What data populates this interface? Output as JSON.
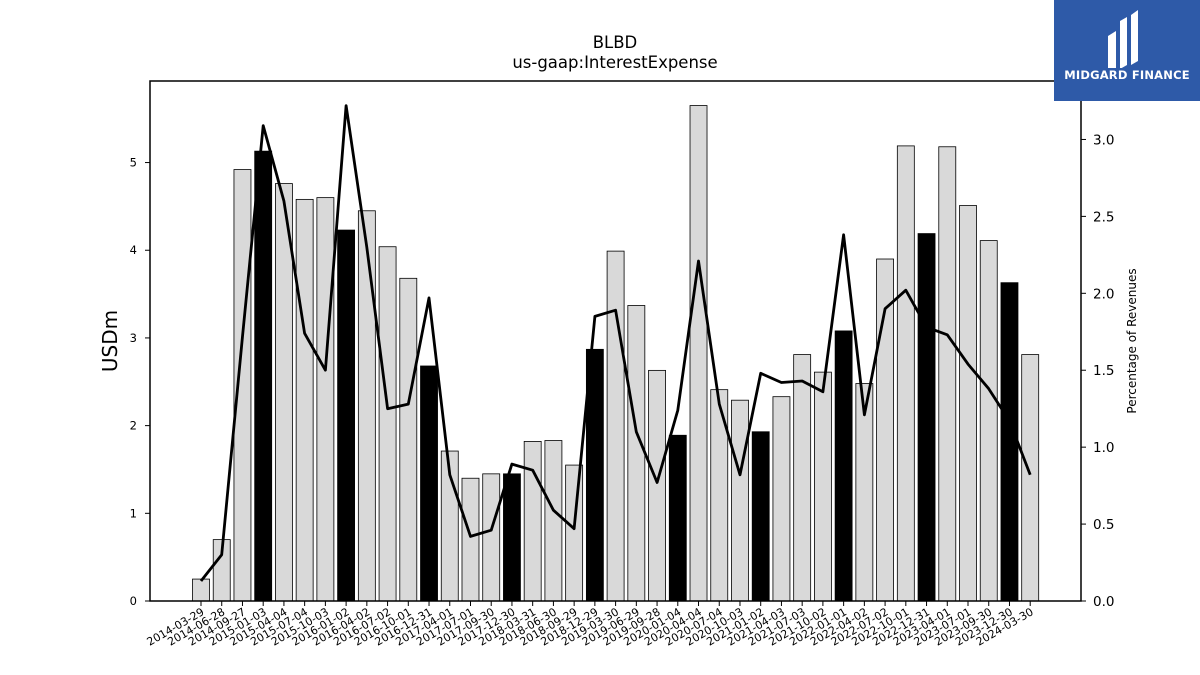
{
  "logo": {
    "text": "MIDGARD FINANCE",
    "background": "#2e5aa8"
  },
  "chart_data": {
    "type": "bar",
    "title": "BLBD",
    "subtitle": "us-gaap:InterestExpense",
    "ylabel": "USDm",
    "y2label": "Percentage of Revenues",
    "ylim": [
      0,
      5.93
    ],
    "y2lim": [
      0,
      3.38
    ],
    "yticks": [
      "0",
      "1",
      "2",
      "3",
      "4",
      "5"
    ],
    "y2ticks": [
      "0.0",
      "0.5",
      "1.0",
      "1.5",
      "2.0",
      "2.5",
      "3.0"
    ],
    "categories": [
      "2014-03-29",
      "2014-06-28",
      "2014-09-27",
      "2015-01-03",
      "2015-04-04",
      "2015-07-04",
      "2015-10-03",
      "2016-01-02",
      "2016-04-02",
      "2016-07-02",
      "2016-10-01",
      "2016-12-31",
      "2017-04-01",
      "2017-07-01",
      "2017-09-30",
      "2017-12-30",
      "2018-03-31",
      "2018-06-30",
      "2018-09-29",
      "2018-12-29",
      "2019-03-30",
      "2019-06-29",
      "2019-09-28",
      "2020-01-04",
      "2020-04-04",
      "2020-07-04",
      "2020-10-03",
      "2021-01-02",
      "2021-04-03",
      "2021-07-03",
      "2021-10-02",
      "2022-01-01",
      "2022-04-02",
      "2022-07-02",
      "2022-10-01",
      "2022-12-31",
      "2023-04-01",
      "2023-07-01",
      "2023-09-30",
      "2023-12-30",
      "2024-03-30"
    ],
    "series": [
      {
        "name": "",
        "kind": "bar",
        "values": [
          0.25,
          0.7,
          4.92,
          5.13,
          4.76,
          4.58,
          4.6,
          4.23,
          4.45,
          4.04,
          3.68,
          2.68,
          1.71,
          1.4,
          1.45,
          1.45,
          1.82,
          1.83,
          1.55,
          2.87,
          3.99,
          3.37,
          2.63,
          1.89,
          5.65,
          2.41,
          2.29,
          1.93,
          2.33,
          2.81,
          2.61,
          3.08,
          2.48,
          3.9,
          5.19,
          4.19,
          5.18,
          4.51,
          4.11,
          3.63,
          2.81
        ],
        "highlight": [
          false,
          false,
          false,
          true,
          false,
          false,
          false,
          true,
          false,
          false,
          false,
          true,
          false,
          false,
          false,
          true,
          false,
          false,
          false,
          true,
          false,
          false,
          false,
          true,
          false,
          false,
          false,
          true,
          false,
          false,
          false,
          true,
          false,
          false,
          false,
          true,
          false,
          false,
          false,
          true,
          false
        ]
      },
      {
        "name": "",
        "kind": "line",
        "axis": "right",
        "values": [
          0.13,
          0.3,
          1.72,
          3.09,
          2.6,
          1.74,
          1.5,
          3.22,
          2.3,
          1.25,
          1.28,
          1.97,
          0.82,
          0.42,
          0.46,
          0.89,
          0.85,
          0.59,
          0.47,
          1.85,
          1.89,
          1.1,
          0.77,
          1.24,
          2.21,
          1.28,
          0.82,
          1.48,
          1.42,
          1.43,
          1.36,
          2.38,
          1.21,
          1.9,
          2.02,
          1.78,
          1.73,
          1.54,
          1.38,
          1.17,
          0.82
        ]
      }
    ],
    "colors": {
      "bar": "#d9d9d9",
      "bar_highlight": "#000000",
      "line": "#000000"
    },
    "grid": false,
    "legend": "none"
  }
}
